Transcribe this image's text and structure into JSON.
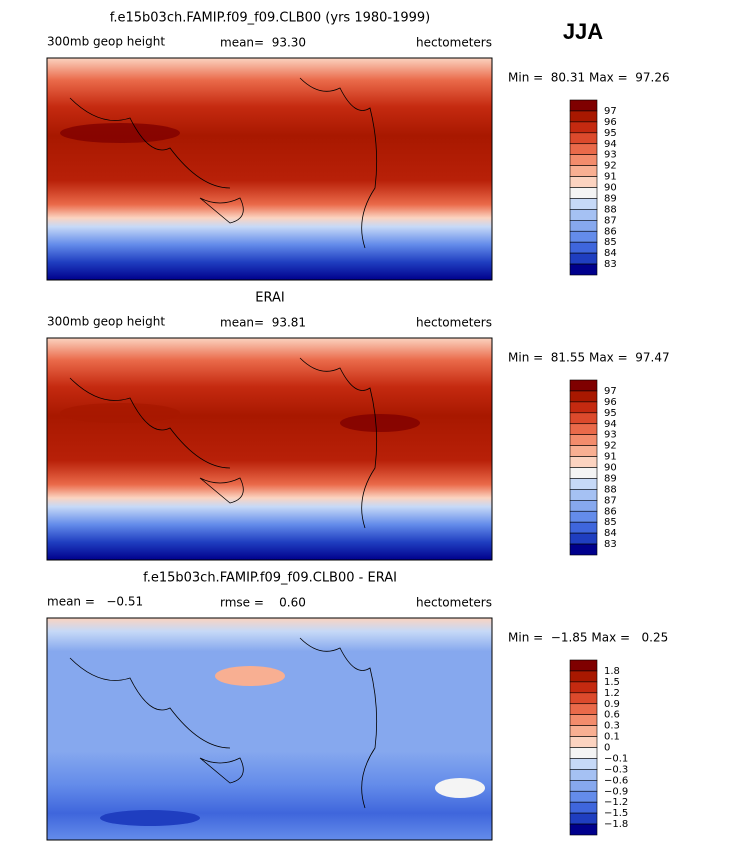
{
  "season": "JJA",
  "panels": [
    {
      "title": "f.e15b03ch.FAMIP.f09_f09.CLB00 (yrs 1980-1999)",
      "left": "300mb geop height",
      "center": "mean=  93.30",
      "right": "hectometers",
      "minmax": "Min =  80.31 Max =  97.26",
      "colorbar": {
        "labels": [
          "97",
          "96",
          "95",
          "94",
          "93",
          "92",
          "91",
          "90",
          "89",
          "88",
          "87",
          "86",
          "85",
          "84",
          "83"
        ],
        "colors": [
          "#7f0000",
          "#a81800",
          "#c52a10",
          "#dc4a2c",
          "#ea6a4a",
          "#f38c6c",
          "#f8af92",
          "#fbd3c0",
          "#f4f4f4",
          "#c6d9f7",
          "#a5c1f3",
          "#86a8ee",
          "#648cea",
          "#3f66dc",
          "#1f3ec0",
          "#00008c"
        ]
      }
    },
    {
      "title": "ERAI",
      "left": "300mb geop height",
      "center": "mean=  93.81",
      "right": "hectometers",
      "minmax": "Min =  81.55 Max =  97.47",
      "colorbar": {
        "labels": [
          "97",
          "96",
          "95",
          "94",
          "93",
          "92",
          "91",
          "90",
          "89",
          "88",
          "87",
          "86",
          "85",
          "84",
          "83"
        ],
        "colors": [
          "#7f0000",
          "#a81800",
          "#c52a10",
          "#dc4a2c",
          "#ea6a4a",
          "#f38c6c",
          "#f8af92",
          "#fbd3c0",
          "#f4f4f4",
          "#c6d9f7",
          "#a5c1f3",
          "#86a8ee",
          "#648cea",
          "#3f66dc",
          "#1f3ec0",
          "#00008c"
        ]
      }
    },
    {
      "title": "f.e15b03ch.FAMIP.f09_f09.CLB00 - ERAI",
      "left": "mean =   −0.51",
      "center": "rmse =    0.60",
      "right": "hectometers",
      "minmax": "Min =  −1.85 Max =   0.25",
      "colorbar": {
        "labels": [
          "1.8",
          "1.5",
          "1.2",
          "0.9",
          "0.6",
          "0.3",
          "0.1",
          "0",
          "−0.1",
          "−0.3",
          "−0.6",
          "−0.9",
          "−1.2",
          "−1.5",
          "−1.8"
        ],
        "colors": [
          "#7f0000",
          "#a81800",
          "#c52a10",
          "#dc4a2c",
          "#ea6a4a",
          "#f38c6c",
          "#f8af92",
          "#fbd3c0",
          "#f4f4f4",
          "#c6d9f7",
          "#a5c1f3",
          "#86a8ee",
          "#648cea",
          "#3f66dc",
          "#1f3ec0",
          "#00008c"
        ]
      }
    }
  ]
}
